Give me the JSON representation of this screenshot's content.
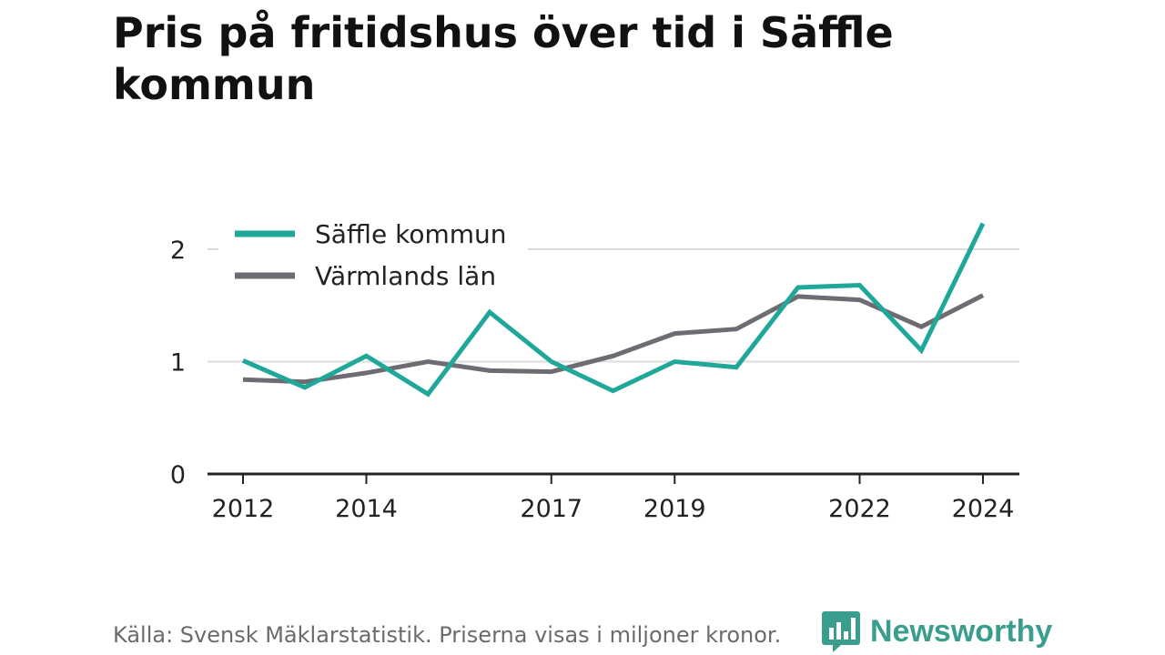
{
  "chart_data": {
    "type": "line",
    "title": "Pris på fritidshus över tid i Säffle kommun",
    "x": [
      2012,
      2013,
      2014,
      2015,
      2016,
      2017,
      2018,
      2019,
      2020,
      2021,
      2022,
      2023,
      2024
    ],
    "x_ticks": [
      "2012",
      "2014",
      "2017",
      "2019",
      "2022",
      "2024"
    ],
    "y_ticks": [
      "0",
      "1",
      "2"
    ],
    "ylim": [
      0,
      2.3
    ],
    "grid": true,
    "legend_position": "top-left",
    "series": [
      {
        "name": "Säffle kommun",
        "color": "#1fa89a",
        "values": [
          1.01,
          0.77,
          1.05,
          0.71,
          1.44,
          1.0,
          0.74,
          1.0,
          0.95,
          1.66,
          1.68,
          1.1,
          2.23
        ]
      },
      {
        "name": "Värmlands län",
        "color": "#6e6c72",
        "values": [
          0.84,
          0.82,
          0.9,
          1.0,
          0.92,
          0.91,
          1.05,
          1.25,
          1.29,
          1.58,
          1.55,
          1.31,
          1.59
        ]
      }
    ]
  },
  "source": "Källa: Svensk Mäklarstatistik. Priserna visas i miljoner kronor.",
  "brand": {
    "name": "Newsworthy",
    "color": "#3a9e8f"
  }
}
